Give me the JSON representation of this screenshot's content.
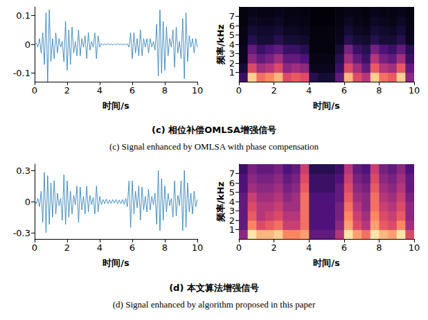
{
  "chart_data": [
    {
      "type": "line",
      "xlabel": "时间/s",
      "color": "#1f77b4",
      "grid": false,
      "xlim": [
        0,
        10
      ],
      "xticks": [
        0,
        2,
        4,
        6,
        8,
        10
      ],
      "ylim": [
        -0.13,
        0.13
      ],
      "yticks": [
        -0.1,
        0,
        0.1
      ],
      "x": [
        0,
        0.1,
        0.2,
        0.3,
        0.4,
        0.5,
        0.6,
        0.7,
        0.8,
        0.9,
        1,
        1.1,
        1.2,
        1.3,
        1.4,
        1.5,
        1.6,
        1.7,
        1.8,
        1.9,
        2,
        2.1,
        2.2,
        2.3,
        2.4,
        2.5,
        2.6,
        2.7,
        2.8,
        2.9,
        3,
        3.1,
        3.2,
        3.3,
        3.4,
        3.5,
        3.6,
        3.7,
        3.8,
        3.9,
        4,
        4.1,
        4.2,
        4.3,
        4.4,
        4.5,
        4.6,
        4.7,
        4.8,
        4.9,
        5,
        5.1,
        5.2,
        5.3,
        5.4,
        5.5,
        5.6,
        5.7,
        5.8,
        5.9,
        6,
        6.1,
        6.2,
        6.3,
        6.4,
        6.5,
        6.6,
        6.7,
        6.8,
        6.9,
        7,
        7.1,
        7.2,
        7.3,
        7.4,
        7.5,
        7.6,
        7.7,
        7.8,
        7.9,
        8,
        8.1,
        8.2,
        8.3,
        8.4,
        8.5,
        8.6,
        8.7,
        8.8,
        8.9,
        9,
        9.1,
        9.2,
        9.3,
        9.4,
        9.5,
        9.6,
        9.7,
        9.8,
        9.9,
        10
      ],
      "values": [
        0,
        0.005,
        -0.01,
        0.02,
        -0.03,
        0.04,
        -0.07,
        0.11,
        -0.13,
        0.12,
        -0.06,
        0.02,
        -0.05,
        0.04,
        -0.03,
        0.02,
        -0.01,
        0.01,
        -0.06,
        0.08,
        -0.09,
        0.05,
        -0.07,
        0.06,
        -0.03,
        0.01,
        -0.04,
        0.05,
        -0.04,
        0.02,
        -0.01,
        0.03,
        -0.05,
        0.04,
        -0.02,
        0.01,
        -0.01,
        0.04,
        -0.05,
        0.03,
        -0.01,
        0.003,
        -0.002,
        0.001,
        -0.001,
        0.002,
        -0.001,
        0.001,
        -0.002,
        0.001,
        -0.001,
        0.002,
        -0.001,
        0.001,
        -0.002,
        0.001,
        -0.002,
        0.002,
        -0.01,
        0.04,
        -0.05,
        0.04,
        -0.03,
        0.02,
        -0.04,
        0.05,
        -0.04,
        0.02,
        -0.01,
        0.02,
        -0.03,
        0.02,
        -0.01,
        0.01,
        -0.02,
        0.07,
        -0.11,
        0.12,
        -0.1,
        0.08,
        -0.09,
        0.06,
        -0.04,
        0.02,
        -0.01,
        0.05,
        -0.08,
        0.06,
        -0.03,
        0.01,
        -0.05,
        0.09,
        -0.12,
        0.11,
        -0.06,
        0.03,
        -0.01,
        0.02,
        -0.03,
        0.02,
        -0.01
      ]
    },
    {
      "type": "heatmap",
      "xlabel": "时间/s",
      "ylabel": "频率/kHz",
      "grid": false,
      "xlim": [
        0,
        10
      ],
      "xticks": [
        0,
        2,
        4,
        6,
        8,
        10
      ],
      "ylim": [
        0,
        8
      ],
      "yticks": [
        1,
        2,
        3,
        4,
        5,
        6,
        7
      ],
      "clim": [
        0,
        1
      ],
      "x_edges": [
        0,
        0.5,
        1,
        1.5,
        2,
        2.5,
        3,
        3.5,
        4,
        4.5,
        5,
        5.5,
        6,
        6.5,
        7,
        7.5,
        8,
        8.5,
        9,
        9.5,
        10
      ],
      "y_edges": [
        0,
        1,
        2,
        3,
        4,
        5,
        6,
        7,
        8
      ],
      "values": [
        [
          0.2,
          0.9,
          0.7,
          0.75,
          0.85,
          0.6,
          0.65,
          0.6,
          0.15,
          0.1,
          0.1,
          0.3,
          0.85,
          0.6,
          0.5,
          0.9,
          0.7,
          0.65,
          0.9,
          0.4
        ],
        [
          0.1,
          0.6,
          0.45,
          0.5,
          0.6,
          0.4,
          0.45,
          0.4,
          0.05,
          0.05,
          0.05,
          0.2,
          0.6,
          0.45,
          0.3,
          0.65,
          0.5,
          0.45,
          0.65,
          0.3
        ],
        [
          0.05,
          0.4,
          0.3,
          0.35,
          0.45,
          0.3,
          0.3,
          0.25,
          0.03,
          0.03,
          0.03,
          0.15,
          0.45,
          0.3,
          0.2,
          0.5,
          0.35,
          0.3,
          0.45,
          0.2
        ],
        [
          0.05,
          0.3,
          0.2,
          0.25,
          0.3,
          0.2,
          0.2,
          0.15,
          0.02,
          0.02,
          0.02,
          0.1,
          0.35,
          0.2,
          0.15,
          0.35,
          0.25,
          0.2,
          0.3,
          0.15
        ],
        [
          0.03,
          0.15,
          0.1,
          0.1,
          0.15,
          0.1,
          0.1,
          0.08,
          0.02,
          0.02,
          0.02,
          0.05,
          0.15,
          0.1,
          0.08,
          0.15,
          0.1,
          0.1,
          0.15,
          0.05
        ],
        [
          0.03,
          0.1,
          0.08,
          0.08,
          0.1,
          0.06,
          0.06,
          0.05,
          0.02,
          0.02,
          0.02,
          0.04,
          0.1,
          0.06,
          0.05,
          0.1,
          0.08,
          0.06,
          0.1,
          0.04
        ],
        [
          0.02,
          0.06,
          0.05,
          0.05,
          0.06,
          0.04,
          0.04,
          0.03,
          0.01,
          0.01,
          0.01,
          0.03,
          0.06,
          0.04,
          0.03,
          0.06,
          0.05,
          0.04,
          0.06,
          0.03
        ],
        [
          0.02,
          0.04,
          0.03,
          0.03,
          0.04,
          0.03,
          0.03,
          0.02,
          0.01,
          0.01,
          0.01,
          0.02,
          0.04,
          0.03,
          0.02,
          0.04,
          0.03,
          0.03,
          0.04,
          0.02
        ]
      ]
    },
    {
      "type": "line",
      "xlabel": "时间/s",
      "color": "#1f77b4",
      "grid": false,
      "xlim": [
        0,
        10
      ],
      "xticks": [
        0,
        2,
        4,
        6,
        8,
        10
      ],
      "ylim": [
        -0.36,
        0.36
      ],
      "yticks": [
        -0.3,
        0,
        0.3
      ],
      "x": [
        0,
        0.1,
        0.2,
        0.3,
        0.4,
        0.5,
        0.6,
        0.7,
        0.8,
        0.9,
        1,
        1.1,
        1.2,
        1.3,
        1.4,
        1.5,
        1.6,
        1.7,
        1.8,
        1.9,
        2,
        2.1,
        2.2,
        2.3,
        2.4,
        2.5,
        2.6,
        2.7,
        2.8,
        2.9,
        3,
        3.1,
        3.2,
        3.3,
        3.4,
        3.5,
        3.6,
        3.7,
        3.8,
        3.9,
        4,
        4.1,
        4.2,
        4.3,
        4.4,
        4.5,
        4.6,
        4.7,
        4.8,
        4.9,
        5,
        5.1,
        5.2,
        5.3,
        5.4,
        5.5,
        5.6,
        5.7,
        5.8,
        5.9,
        6,
        6.1,
        6.2,
        6.3,
        6.4,
        6.5,
        6.6,
        6.7,
        6.8,
        6.9,
        7,
        7.1,
        7.2,
        7.3,
        7.4,
        7.5,
        7.6,
        7.7,
        7.8,
        7.9,
        8,
        8.1,
        8.2,
        8.3,
        8.4,
        8.5,
        8.6,
        8.7,
        8.8,
        8.9,
        9,
        9.1,
        9.2,
        9.3,
        9.4,
        9.5,
        9.6,
        9.7,
        9.8,
        9.9,
        10
      ],
      "values": [
        0.01,
        -0.02,
        0.03,
        -0.05,
        0.1,
        -0.2,
        0.28,
        -0.3,
        0.25,
        -0.22,
        0.18,
        -0.15,
        0.2,
        -0.12,
        0.08,
        -0.04,
        0.03,
        -0.18,
        0.26,
        -0.22,
        0.2,
        -0.15,
        0.1,
        -0.12,
        0.06,
        -0.03,
        0.15,
        -0.2,
        0.14,
        -0.08,
        0.05,
        -0.12,
        0.15,
        -0.1,
        0.06,
        -0.03,
        0.04,
        -0.12,
        0.15,
        -0.1,
        0.05,
        -0.03,
        0.02,
        -0.02,
        0.025,
        -0.02,
        0.015,
        -0.02,
        0.02,
        -0.015,
        0.02,
        -0.02,
        0.015,
        -0.02,
        0.02,
        -0.025,
        0.03,
        -0.05,
        0.2,
        -0.25,
        0.2,
        -0.12,
        0.1,
        -0.06,
        0.15,
        -0.18,
        0.14,
        -0.08,
        0.05,
        -0.1,
        0.12,
        -0.08,
        0.05,
        -0.03,
        0.08,
        -0.22,
        0.3,
        -0.28,
        0.22,
        -0.18,
        0.15,
        -0.1,
        0.08,
        -0.04,
        0.03,
        -0.15,
        0.2,
        -0.14,
        0.06,
        -0.04,
        0.2,
        -0.28,
        0.3,
        -0.25,
        0.18,
        -0.1,
        0.08,
        -0.12,
        0.1,
        -0.05,
        0.02
      ]
    },
    {
      "type": "heatmap",
      "xlabel": "时间/s",
      "ylabel": "频率/kHz",
      "grid": false,
      "xlim": [
        0,
        10
      ],
      "xticks": [
        0,
        2,
        4,
        6,
        8,
        10
      ],
      "ylim": [
        0,
        8
      ],
      "yticks": [
        1,
        2,
        3,
        4,
        5,
        6,
        7
      ],
      "clim": [
        0,
        1
      ],
      "x_edges": [
        0,
        0.5,
        1,
        1.5,
        2,
        2.5,
        3,
        3.5,
        4,
        4.5,
        5,
        5.5,
        6,
        6.5,
        7,
        7.5,
        8,
        8.5,
        9,
        9.5,
        10
      ],
      "y_edges": [
        0,
        1,
        2,
        3,
        4,
        5,
        6,
        7,
        8
      ],
      "values": [
        [
          0.4,
          0.95,
          0.85,
          0.85,
          0.9,
          0.75,
          0.75,
          0.8,
          0.3,
          0.3,
          0.3,
          0.5,
          0.95,
          0.8,
          0.7,
          0.95,
          0.85,
          0.8,
          0.95,
          0.6
        ],
        [
          0.3,
          0.75,
          0.6,
          0.65,
          0.7,
          0.55,
          0.55,
          0.7,
          0.25,
          0.25,
          0.25,
          0.4,
          0.8,
          0.6,
          0.5,
          0.8,
          0.65,
          0.6,
          0.75,
          0.45
        ],
        [
          0.3,
          0.65,
          0.5,
          0.55,
          0.6,
          0.5,
          0.5,
          0.7,
          0.25,
          0.25,
          0.25,
          0.35,
          0.75,
          0.55,
          0.45,
          0.75,
          0.6,
          0.55,
          0.65,
          0.4
        ],
        [
          0.3,
          0.6,
          0.5,
          0.5,
          0.55,
          0.45,
          0.45,
          0.7,
          0.25,
          0.25,
          0.25,
          0.35,
          0.7,
          0.5,
          0.4,
          0.7,
          0.55,
          0.5,
          0.6,
          0.4
        ],
        [
          0.3,
          0.55,
          0.45,
          0.45,
          0.5,
          0.4,
          0.45,
          0.7,
          0.25,
          0.25,
          0.25,
          0.3,
          0.65,
          0.45,
          0.4,
          0.7,
          0.5,
          0.45,
          0.55,
          0.35
        ],
        [
          0.25,
          0.45,
          0.4,
          0.4,
          0.45,
          0.35,
          0.4,
          0.65,
          0.2,
          0.2,
          0.2,
          0.3,
          0.6,
          0.4,
          0.35,
          0.65,
          0.45,
          0.4,
          0.5,
          0.3
        ],
        [
          0.25,
          0.4,
          0.35,
          0.35,
          0.4,
          0.3,
          0.35,
          0.6,
          0.2,
          0.2,
          0.2,
          0.25,
          0.55,
          0.35,
          0.3,
          0.6,
          0.4,
          0.35,
          0.45,
          0.3
        ],
        [
          0.2,
          0.35,
          0.3,
          0.3,
          0.35,
          0.25,
          0.3,
          0.55,
          0.15,
          0.15,
          0.15,
          0.2,
          0.5,
          0.3,
          0.25,
          0.55,
          0.35,
          0.3,
          0.4,
          0.25
        ]
      ]
    }
  ],
  "captions": [
    {
      "title": "(c) 相位补偿OMLSA增强信号",
      "subtitle": "(c) Signal enhanced by OMLSA with phase compensation"
    },
    {
      "title": "(d) 本文算法增强信号",
      "subtitle": "(d) Signal enhanced by algorithm proposed in this paper"
    }
  ]
}
